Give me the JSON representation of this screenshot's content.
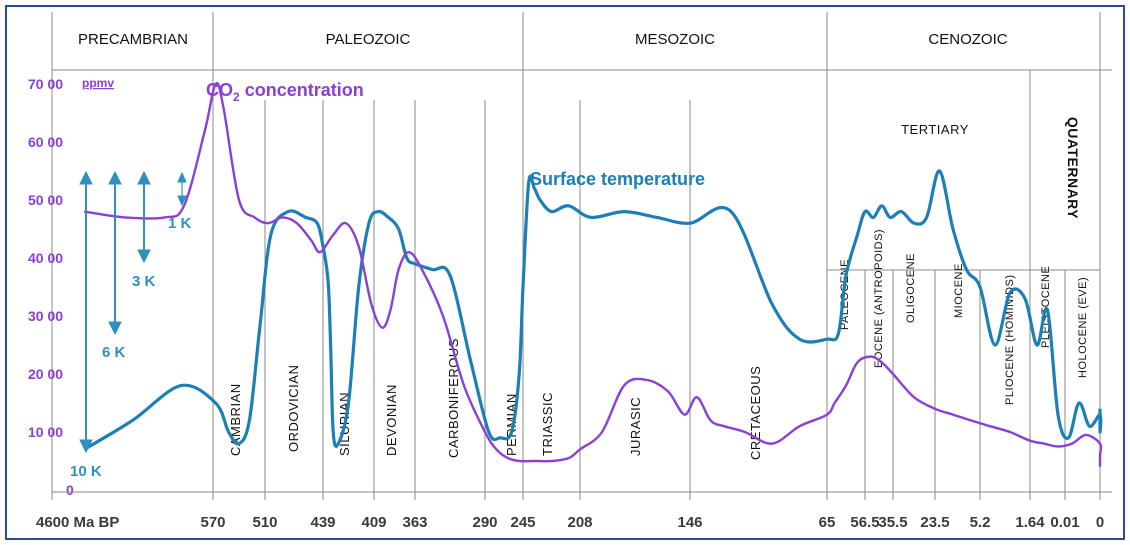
{
  "colors": {
    "co2": "#8a3fd6",
    "temperature": "#1c7fb5",
    "axis_text": "#8a3fd6",
    "delta": "#2f8fbf",
    "frame": "#2a4a9a",
    "grid": "#8a8a8a"
  },
  "chart_data": {
    "type": "line",
    "title": "",
    "x_axis_tick_labels": [
      {
        "label": "4600 Ma BP",
        "pos": 0
      },
      {
        "label": "570",
        "pos": 1
      },
      {
        "label": "510",
        "pos": 2
      },
      {
        "label": "439",
        "pos": 3
      },
      {
        "label": "409",
        "pos": 4
      },
      {
        "label": "363",
        "pos": 5
      },
      {
        "label": "290",
        "pos": 6
      },
      {
        "label": "245",
        "pos": 7
      },
      {
        "label": "208",
        "pos": 8
      },
      {
        "label": "146",
        "pos": 9
      },
      {
        "label": "65",
        "pos": 10
      },
      {
        "label": "56.5",
        "pos": 11
      },
      {
        "label": "35.5",
        "pos": 12
      },
      {
        "label": "23.5",
        "pos": 13
      },
      {
        "label": "5.2",
        "pos": 14
      },
      {
        "label": "1.64",
        "pos": 15
      },
      {
        "label": "0.01",
        "pos": 16
      },
      {
        "label": "0",
        "pos": 17
      }
    ],
    "y_axis": {
      "unit": "ppmv",
      "ylim": [
        0,
        7000
      ],
      "tick_labels": [
        "0",
        "10 00",
        "20 00",
        "30 00",
        "40 00",
        "50 00",
        "60 00",
        "70 00"
      ],
      "tick_values": [
        0,
        1000,
        2000,
        3000,
        4000,
        5000,
        6000,
        7000
      ]
    },
    "eras": [
      "PRECAMBRIAN",
      "PALEOZOIC",
      "MESOZOIC",
      "CENOZOIC"
    ],
    "periods": [
      "CAMBRIAN",
      "ORDOVICIAN",
      "SILURIAN",
      "DEVONIAN",
      "CARBONIFEROUS",
      "PERMIAN",
      "TRIASSIC",
      "JURASIC",
      "CRETACEOUS"
    ],
    "cenozoic_subdivisions": [
      "TERTIARY",
      "QUATERNARY"
    ],
    "epochs": [
      "PALEOCENE",
      "EOCENE (ANTROPOIDS)",
      "OLIGOCENE",
      "MIOCENE",
      "PLIOCENE (HOMINIDS)",
      "PLEISTOCENE",
      "HOLOCENE (EVE)"
    ],
    "annotations": [
      "1 K",
      "3 K",
      "6 K",
      "10 K"
    ],
    "series": [
      {
        "name": "CO₂ concentration",
        "x": [
          0.2,
          0.45,
          0.7,
          0.82,
          0.95,
          1.05,
          1.2,
          1.5,
          1.8,
          2.05,
          2.3,
          2.55,
          2.8,
          2.95,
          3.2,
          3.45,
          3.7,
          3.95,
          4.2,
          4.4,
          4.6,
          4.85,
          5.1,
          5.4,
          5.7,
          6.0,
          6.3,
          6.6,
          6.9,
          7.2,
          7.5,
          7.8,
          8.0,
          8.2,
          8.4,
          8.6,
          8.8,
          8.95,
          9.05,
          9.15,
          9.25,
          9.4,
          9.6,
          9.8,
          10.0,
          10.2,
          10.5,
          10.8,
          11.2,
          11.6,
          12.0,
          12.5,
          13.0,
          13.4,
          13.8,
          14.2,
          14.6,
          15.0,
          15.4,
          15.8,
          16.2,
          16.6,
          17.0,
          17.3,
          17.55
        ],
        "values": [
          4800,
          4700,
          4700,
          4900,
          6200,
          7000,
          6600,
          5000,
          4700,
          4600,
          4700,
          4600,
          4300,
          4100,
          4400,
          4600,
          4200,
          3200,
          2800,
          3100,
          3800,
          4100,
          3800,
          3000,
          1800,
          1000,
          700,
          550,
          500,
          500,
          500,
          550,
          700,
          1000,
          1800,
          1900,
          1700,
          1300,
          1600,
          1200,
          1100,
          1000,
          800,
          1100,
          1300,
          1500,
          1800,
          2200,
          2300,
          2200,
          2000,
          1600,
          1400,
          1300,
          1200,
          1100,
          1000,
          850,
          800,
          750,
          800,
          950,
          800,
          600,
          400
        ]
      },
      {
        "name": "Surface temperature",
        "x": [
          0.2,
          0.5,
          0.8,
          1.05,
          1.3,
          1.5,
          1.7,
          1.9,
          2.1,
          2.4,
          2.7,
          2.9,
          3.0,
          3.1,
          3.15,
          3.2,
          3.3,
          3.5,
          3.7,
          3.9,
          4.1,
          4.35,
          4.6,
          4.8,
          5.0,
          5.25,
          5.5,
          5.8,
          6.1,
          6.4,
          6.7,
          6.9,
          7.0,
          7.1,
          7.2,
          7.3,
          7.5,
          7.8,
          8.1,
          8.4,
          8.7,
          9.0,
          9.3,
          9.6,
          9.8,
          10.0,
          10.3,
          10.5,
          10.8,
          11.0,
          11.3,
          11.6,
          11.9,
          12.2,
          12.5,
          12.8,
          13.1,
          13.4,
          13.7,
          14.0,
          14.3,
          14.6,
          14.9,
          15.2,
          15.5,
          15.8,
          16.1,
          16.4,
          16.7,
          17.0,
          17.3,
          17.55
        ],
        "values": [
          700,
          1200,
          1800,
          1500,
          1000,
          800,
          1200,
          2800,
          4400,
          4800,
          4700,
          4600,
          4200,
          3600,
          2500,
          1000,
          800,
          1500,
          3500,
          4600,
          4800,
          4700,
          4500,
          4000,
          3900,
          3800,
          3700,
          2200,
          1000,
          900,
          1000,
          2000,
          3500,
          5300,
          5200,
          5000,
          4800,
          4900,
          4700,
          4800,
          4700,
          4600,
          4800,
          3200,
          2600,
          2600,
          2700,
          3700,
          4400,
          4800,
          4700,
          4900,
          4700,
          4800,
          4600,
          4700,
          5500,
          4500,
          3800,
          3500,
          2500,
          3400,
          3300,
          2500,
          3100,
          1300,
          900,
          1500,
          1100,
          1300,
          1000,
          1400
        ]
      }
    ],
    "legend": "inline labels",
    "grid": "vertical lines at period boundaries"
  },
  "labels": {
    "co2_title": "CO",
    "co2_sub": "2",
    "co2_rest": " concentration",
    "temp_title": "Surface temperature",
    "ppmv": "ppmv"
  }
}
